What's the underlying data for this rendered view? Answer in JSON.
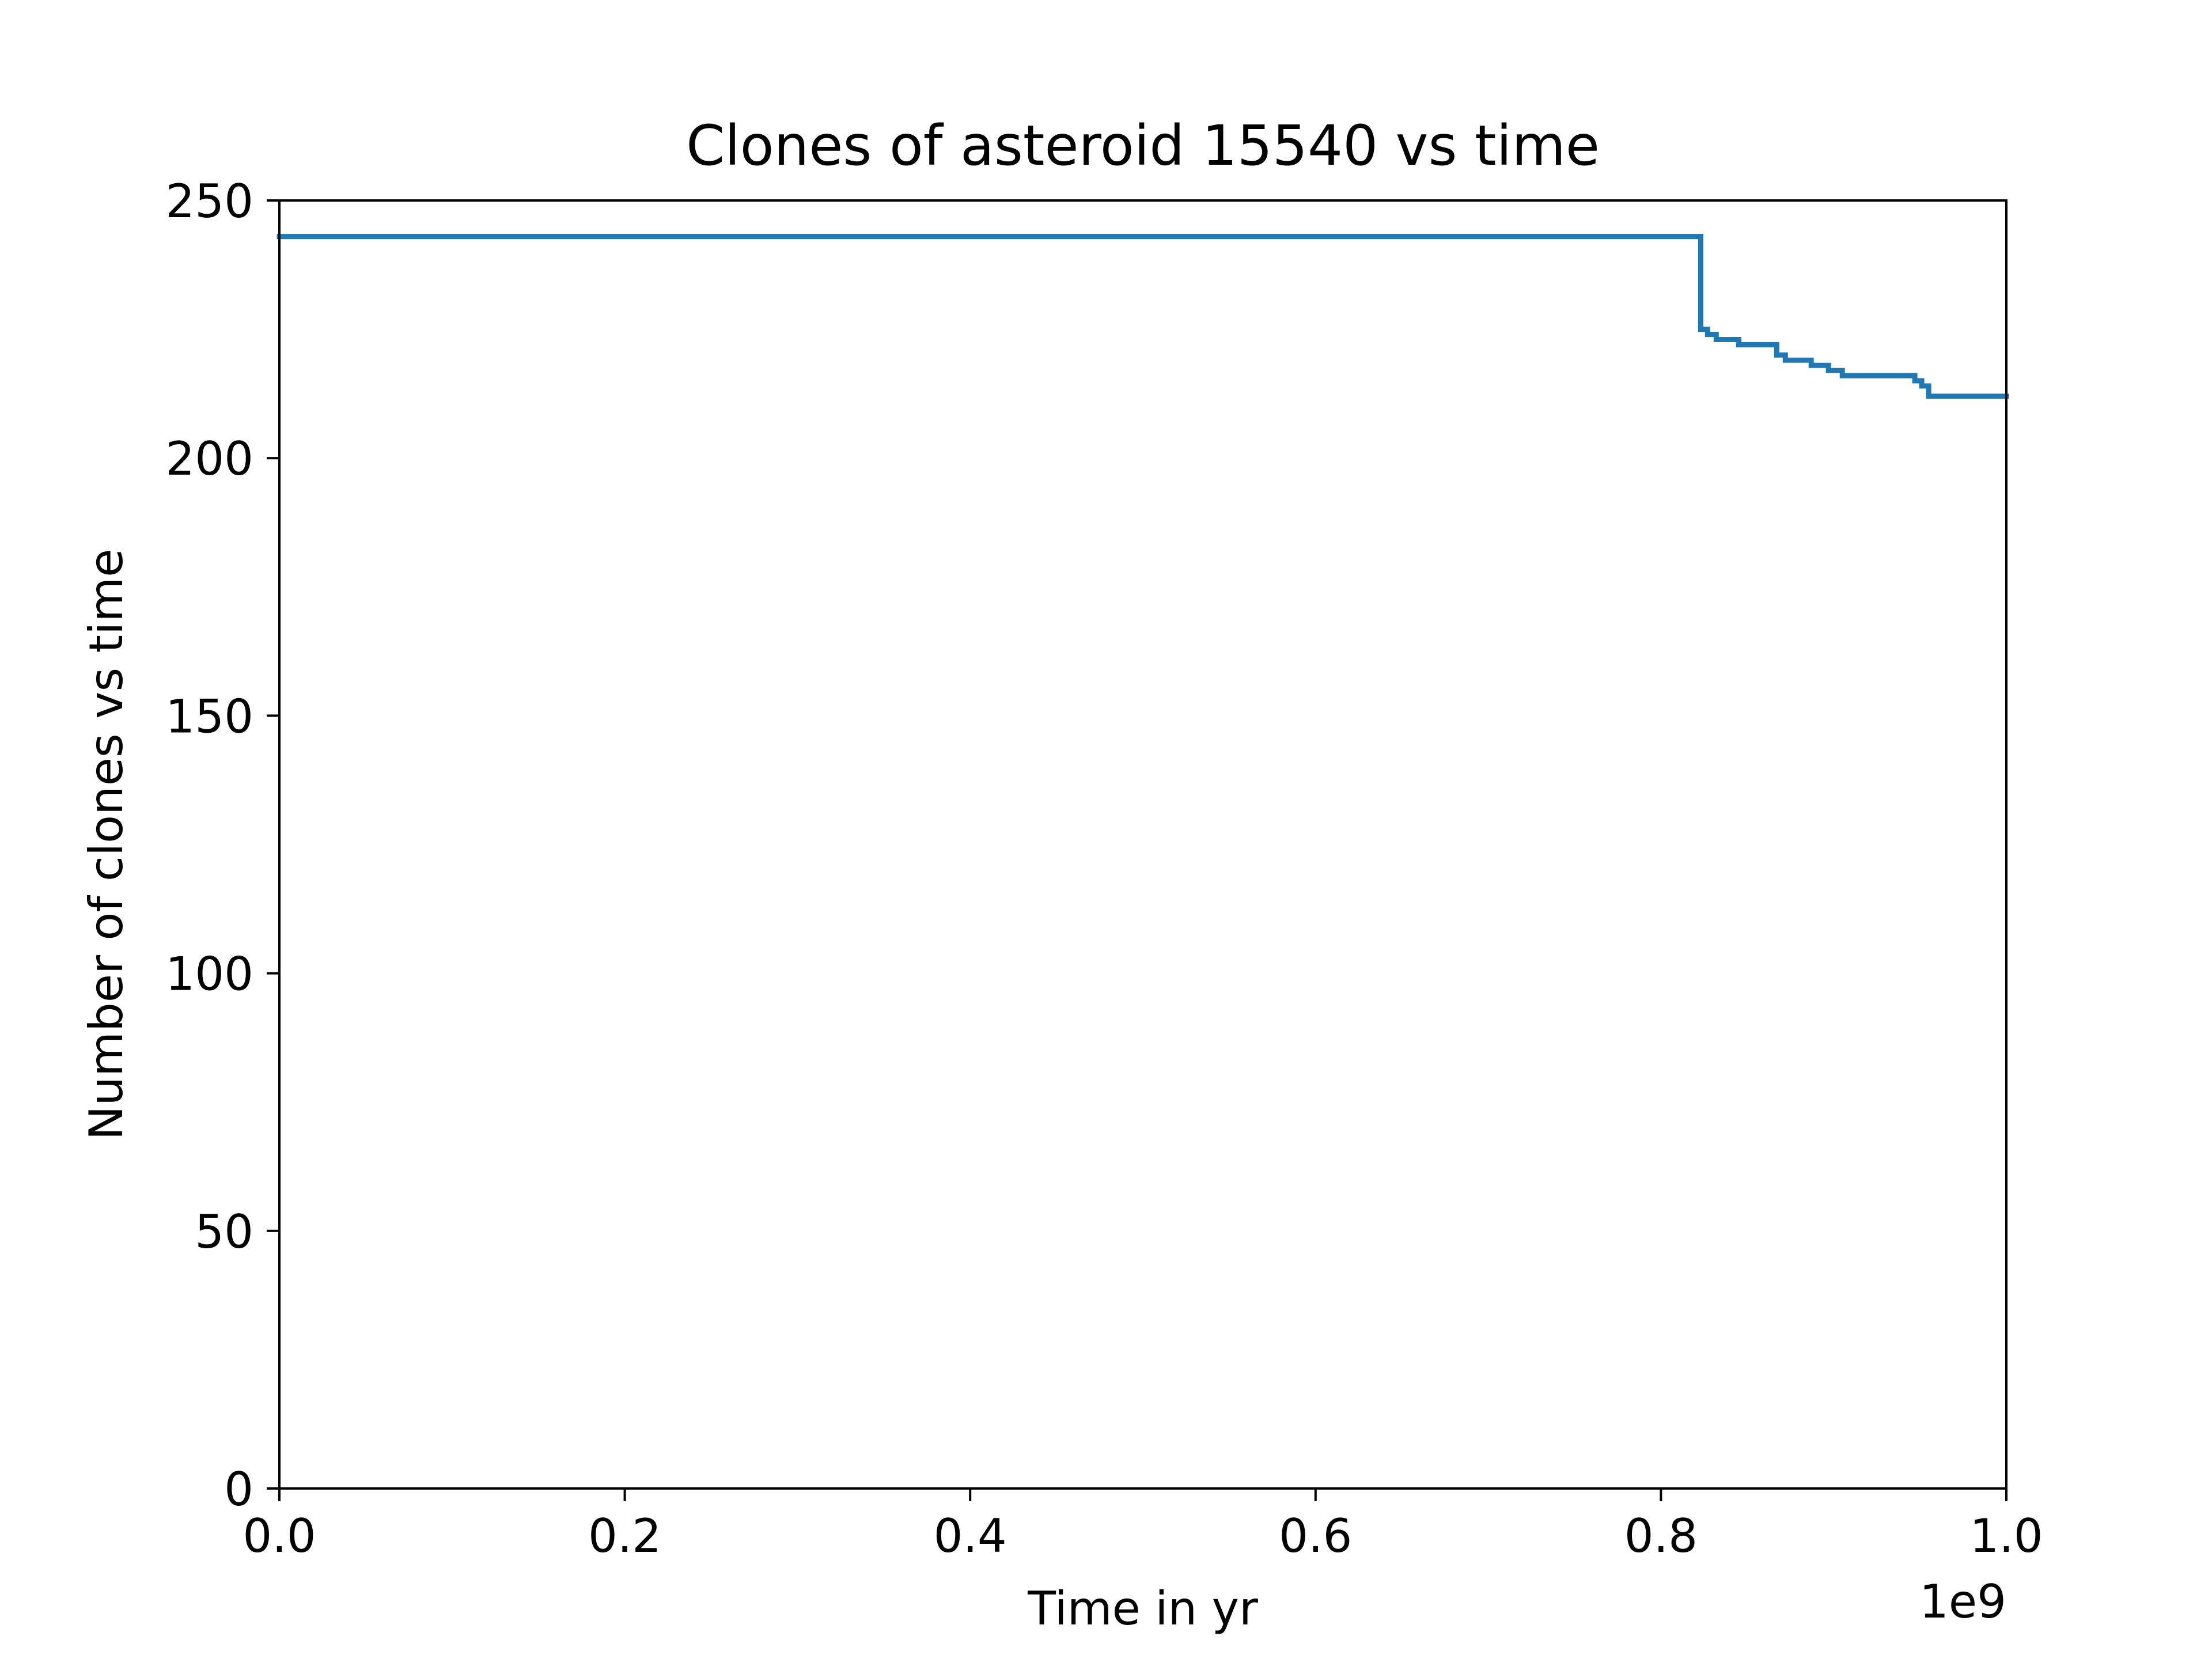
{
  "chart_data": {
    "type": "line",
    "drawstyle": "steps-post",
    "title": "Clones of asteroid 15540 vs time",
    "xlabel": "Time in yr",
    "ylabel": "Number of clones vs time",
    "x_offset_label": "1e9",
    "x_scale_factor": 1000000000,
    "xlim": [
      0,
      1000000000
    ],
    "ylim": [
      0,
      250
    ],
    "x_ticks": [
      0,
      200000000,
      400000000,
      600000000,
      800000000,
      1000000000
    ],
    "x_tick_labels": [
      "0.0",
      "0.2",
      "0.4",
      "0.6",
      "0.8",
      "1.0"
    ],
    "y_ticks": [
      0,
      50,
      100,
      150,
      200,
      250
    ],
    "y_tick_labels": [
      "0",
      "50",
      "100",
      "150",
      "200",
      "250"
    ],
    "grid": false,
    "series": [
      {
        "color": "#1f77b4",
        "x": [
          0,
          823000000,
          827000000,
          832000000,
          845000000,
          867000000,
          872000000,
          887000000,
          897000000,
          905000000,
          947000000,
          951000000,
          955000000,
          1000000000
        ],
        "y": [
          243,
          225,
          224,
          223,
          222,
          220,
          219,
          218,
          217,
          216,
          215,
          214,
          212,
          212
        ]
      }
    ]
  }
}
